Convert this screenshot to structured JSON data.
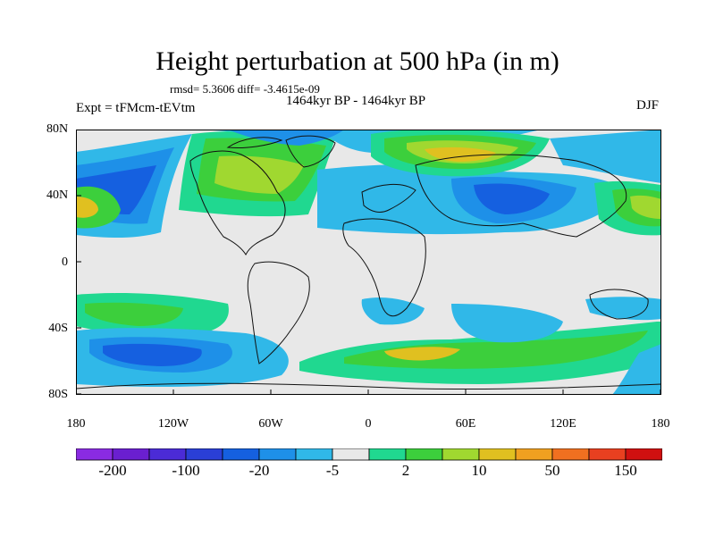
{
  "title": "Height perturbation at 500 hPa (in m)",
  "stats_line": "rmsd= 5.3606 diff= -3.4615e-09",
  "period": "1464kyr BP - 1464kyr BP",
  "experiment": "Expt = tFMcm-tEVtm",
  "season": "DJF",
  "lat_ticks": [
    "80N",
    "40N",
    "0",
    "40S",
    "80S"
  ],
  "lon_ticks": [
    "180",
    "120W",
    "60W",
    "0",
    "60E",
    "120E",
    "180"
  ],
  "colorbar": {
    "labels": [
      "-200",
      "-100",
      "-20",
      "-5",
      "2",
      "10",
      "50",
      "150"
    ],
    "colors": [
      "#8a2be2",
      "#6a1fd0",
      "#4b2bd6",
      "#2a3fd6",
      "#1560e0",
      "#1e90e8",
      "#30b8e8",
      "#e8e8e8",
      "#20d890",
      "#3ccf3c",
      "#a0d830",
      "#e0c020",
      "#f0a020",
      "#f07020",
      "#e84020",
      "#d01010"
    ]
  },
  "map_palette": {
    "neutral": "#e8e8e8",
    "light_blue": "#30b8e8",
    "blue": "#1e90e8",
    "dark_blue": "#1560e0",
    "teal": "#20d890",
    "green": "#3ccf3c",
    "yellow_green": "#a0d830",
    "yellow": "#e0c020",
    "orange": "#f0a020"
  }
}
